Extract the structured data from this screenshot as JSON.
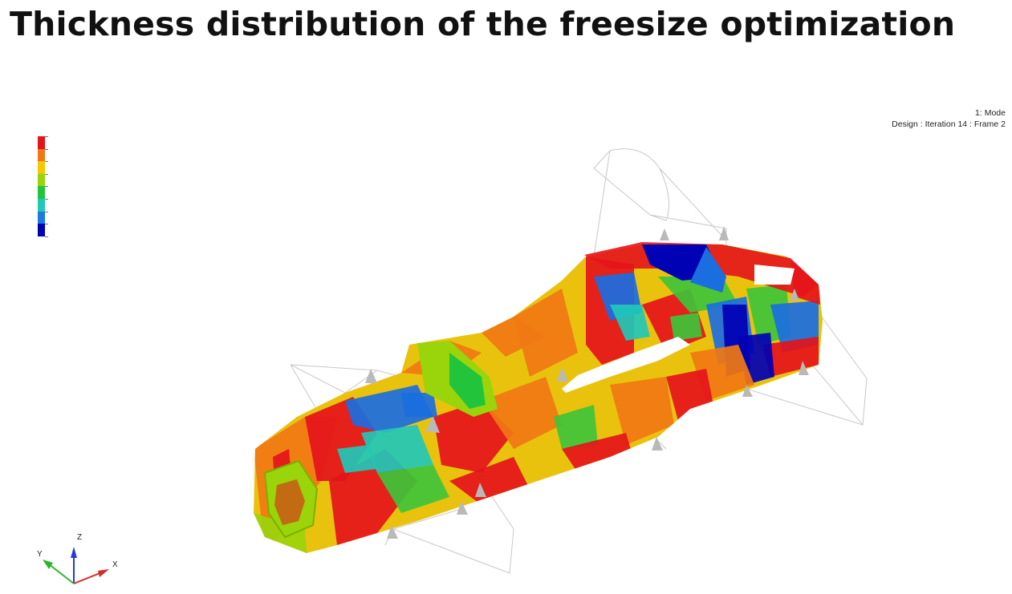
{
  "title": "Thickness distribution of the freesize optimization",
  "info": {
    "line1": "1: Mode",
    "line2": "Design : Iteration 14 : Frame 2"
  },
  "legend": {
    "colors": [
      "#e4141b",
      "#f07814",
      "#f5c800",
      "#9ad40a",
      "#22c43c",
      "#20c8b8",
      "#1a7ae0",
      "#0000b4"
    ]
  },
  "triad": {
    "z": "Z",
    "y": "Y",
    "x": "X",
    "colors": {
      "z": "#2a3ad8",
      "y": "#2bb52b",
      "x": "#d82a2a"
    }
  },
  "model_palette": {
    "red": "#e4141b",
    "orange": "#f07814",
    "yellow": "#e9c20e",
    "lime": "#9ad40a",
    "green": "#3ec43a",
    "cyan": "#20c8b8",
    "blue": "#1a6ee0",
    "navy": "#0000b4"
  }
}
